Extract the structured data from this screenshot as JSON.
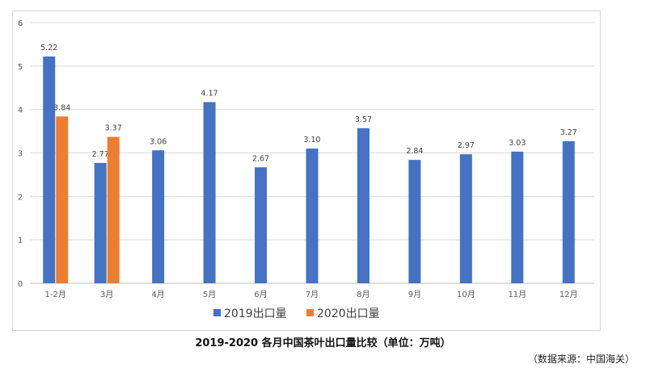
{
  "caption": "2019-2020 各月中国茶叶出口量比较（单位：万吨）",
  "source": "（数据来源：中国海关）",
  "chart_data": {
    "type": "bar",
    "title": "2019-2020 各月中国茶叶出口量比较（单位：万吨）",
    "xlabel": "",
    "ylabel": "",
    "ylim": [
      0,
      6
    ],
    "yticks": [
      "0",
      "1",
      "2",
      "3",
      "4",
      "5",
      "6"
    ],
    "grid": true,
    "legend_position": "bottom",
    "categories": [
      "1-2月",
      "3月",
      "4月",
      "5月",
      "6月",
      "7月",
      "8月",
      "9月",
      "10月",
      "11月",
      "12月"
    ],
    "series": [
      {
        "name": "2019出口量",
        "color": "#4472c4",
        "values": [
          5.22,
          2.77,
          3.06,
          4.17,
          2.67,
          3.1,
          3.57,
          2.84,
          2.97,
          3.03,
          3.27
        ],
        "labels": [
          "5.22",
          "2.77",
          "3.06",
          "4.17",
          "2.67",
          "3.10",
          "3.57",
          "2.84",
          "2.97",
          "3.03",
          "3.27"
        ]
      },
      {
        "name": "2020出口量",
        "color": "#ed7d31",
        "values": [
          3.84,
          3.37,
          null,
          null,
          null,
          null,
          null,
          null,
          null,
          null,
          null
        ],
        "labels": [
          "3.84",
          "3.37",
          null,
          null,
          null,
          null,
          null,
          null,
          null,
          null,
          null
        ]
      }
    ]
  }
}
